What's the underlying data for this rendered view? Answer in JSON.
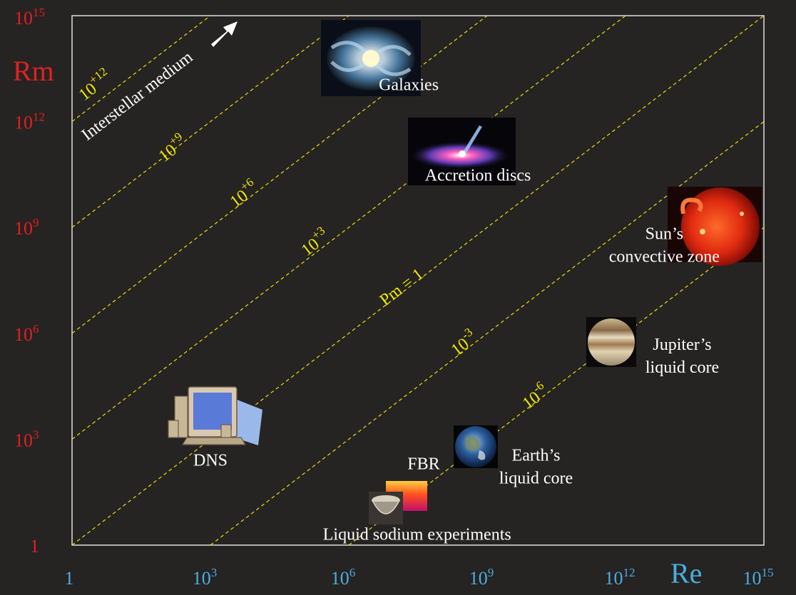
{
  "chart_data": {
    "type": "scatter",
    "xlabel": "Re",
    "ylabel": "Rm",
    "xscale": "log",
    "yscale": "log",
    "xlim": [
      1,
      1000000000000000.0
    ],
    "ylim": [
      1,
      1000000000000000.0
    ],
    "grid": false,
    "x_ticks": [
      {
        "base": "1",
        "exp": ""
      },
      {
        "base": "10",
        "exp": "3"
      },
      {
        "base": "10",
        "exp": "6"
      },
      {
        "base": "10",
        "exp": "9"
      },
      {
        "base": "10",
        "exp": "12"
      },
      {
        "base": "10",
        "exp": "15"
      }
    ],
    "y_ticks": [
      {
        "base": "1",
        "exp": ""
      },
      {
        "base": "10",
        "exp": "3"
      },
      {
        "base": "10",
        "exp": "6"
      },
      {
        "base": "10",
        "exp": "9"
      },
      {
        "base": "10",
        "exp": "12"
      },
      {
        "base": "10",
        "exp": "15"
      }
    ],
    "pm_lines": [
      {
        "base": "10",
        "exp": "+12",
        "log_pm": 12
      },
      {
        "base": "10",
        "exp": "+9",
        "log_pm": 9
      },
      {
        "base": "10",
        "exp": "+6",
        "log_pm": 6
      },
      {
        "base": "10",
        "exp": "+3",
        "log_pm": 3
      },
      {
        "base": "Pm = 1",
        "exp": "",
        "log_pm": 0
      },
      {
        "base": "10",
        "exp": "-3",
        "log_pm": -3
      },
      {
        "base": "10",
        "exp": "-6",
        "log_pm": -6
      }
    ],
    "annotations": [
      {
        "text": "Interstellar medium",
        "arrow": true
      }
    ],
    "points": [
      {
        "label": "Galaxies",
        "log_re": 7.3,
        "log_rm": 14.1,
        "icon": "galaxy-icon"
      },
      {
        "label": "Accretion discs",
        "log_re": 8.8,
        "log_rm": 11.5,
        "icon": "accretion-disc-icon"
      },
      {
        "label": "Sun’s convective zone",
        "log_re": 14.0,
        "log_rm": 9.2,
        "icon": "sun-icon"
      },
      {
        "label": "Jupiter’s liquid core",
        "log_re": 11.9,
        "log_rm": 5.9,
        "icon": "jupiter-icon"
      },
      {
        "label": "Earth’s liquid core",
        "log_re": 8.9,
        "log_rm": 2.8,
        "icon": "earth-icon"
      },
      {
        "label": "DNS",
        "log_re": 3.0,
        "log_rm": 3.3,
        "icon": "computer-icon"
      },
      {
        "label": "FBR",
        "log_re": 7.7,
        "log_rm": 1.5,
        "icon": "fbr-icon"
      },
      {
        "label": "Liquid sodium experiments",
        "log_re": 6.8,
        "log_rm": 1.0,
        "icon": "sodium-experiment-icon"
      }
    ]
  }
}
